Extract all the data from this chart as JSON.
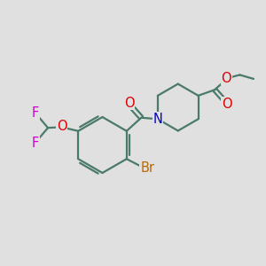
{
  "bg_color": "#e0e0e0",
  "bond_color": "#4a7a6a",
  "bond_width": 1.6,
  "atom_colors": {
    "O": "#dd0000",
    "N": "#0000cc",
    "F": "#cc00cc",
    "Br": "#bb6600",
    "C": "#000000"
  },
  "font_size": 9.5,
  "fig_size": [
    3.0,
    3.0
  ],
  "dpi": 100
}
